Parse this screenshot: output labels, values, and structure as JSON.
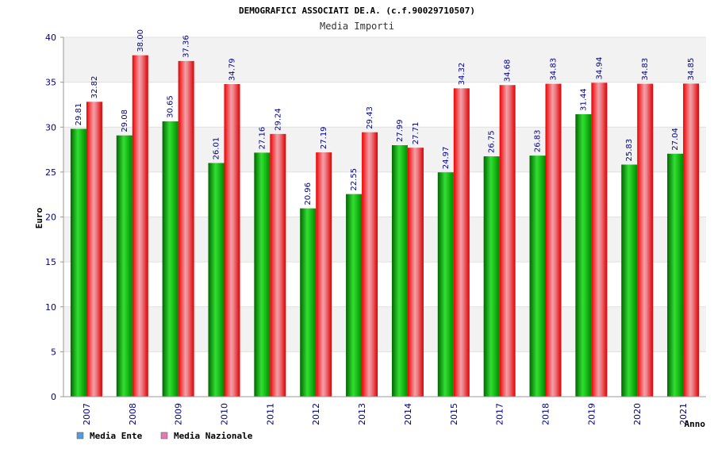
{
  "chart_data": {
    "type": "bar",
    "title": "DEMOGRAFICI ASSOCIATI DE.A. (c.f.90029710507)",
    "subtitle": "Media Importi",
    "xlabel": "Anno",
    "ylabel": "Euro",
    "ylim": [
      0,
      40
    ],
    "yticks": [
      0,
      5,
      10,
      15,
      20,
      25,
      30,
      35,
      40
    ],
    "categories": [
      "2007",
      "2008",
      "2009",
      "2010",
      "2011",
      "2012",
      "2013",
      "2014",
      "2015",
      "2017",
      "2018",
      "2019",
      "2020",
      "2021"
    ],
    "series": [
      {
        "name": "Media Ente",
        "color": "#00aa00",
        "legend_color": "#5b9bd5",
        "values": [
          29.81,
          29.08,
          30.65,
          26.01,
          27.16,
          20.96,
          22.55,
          27.99,
          24.97,
          26.75,
          26.83,
          31.44,
          25.83,
          27.04
        ],
        "labels": [
          "29.81",
          "29.08",
          "30.65",
          "26.01",
          "27.16",
          "20.96",
          "22.55",
          "27.99",
          "24.97",
          "26.75",
          "26.83",
          "31.44",
          "25.83",
          "27.04"
        ]
      },
      {
        "name": "Media Nazionale",
        "color": "#ee0000",
        "legend_color": "#e07ab0",
        "values": [
          32.82,
          38.0,
          37.36,
          34.79,
          29.24,
          27.19,
          29.43,
          27.71,
          34.32,
          34.68,
          34.83,
          34.94,
          34.83,
          34.85
        ],
        "labels": [
          "32.82",
          "38.00",
          "37.36",
          "34.79",
          "29.24",
          "27.19",
          "29.43",
          "27.71",
          "34.32",
          "34.68",
          "34.83",
          "34.94",
          "34.83",
          "34.85"
        ]
      }
    ],
    "grid": true,
    "legend_position": "bottom-left"
  }
}
